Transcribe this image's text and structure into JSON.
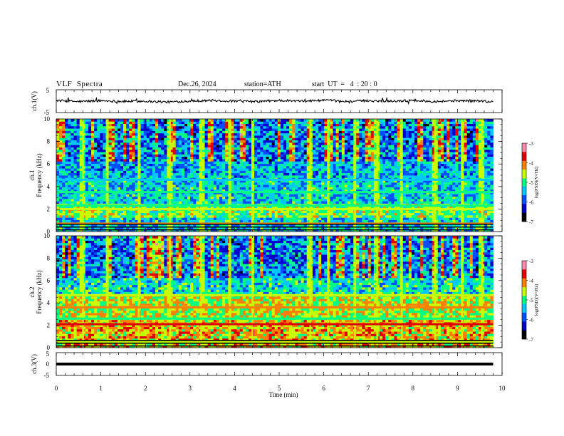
{
  "header": {
    "title": "VLF  Spectra",
    "date": "Dec.26, 2024",
    "station": "station=ATH",
    "start": "start  UT  =   4  : 20 : 0"
  },
  "colors": {
    "colormap": [
      "#000000",
      "#0000c8",
      "#0050ff",
      "#00c8ff",
      "#00ff80",
      "#c8ff00",
      "#ff8000",
      "#e00000",
      "#ff88aa",
      "#ffffff"
    ],
    "trace": "#000000",
    "frame": "#000000"
  },
  "chart_data": [
    {
      "type": "line",
      "panel": "ch1-waveform",
      "ylabel": "ch.1(V)",
      "ylim": [
        -5,
        5
      ],
      "yticks": [
        5,
        -5
      ],
      "xlim": [
        0,
        10
      ],
      "series": [
        {
          "x": [
            0,
            0.5,
            1.0,
            1.5,
            2.0,
            2.5,
            3.0,
            3.5,
            4.0,
            4.5,
            5.0,
            5.5,
            6.0,
            6.5,
            7.0,
            7.5,
            8.0,
            8.5,
            9.0,
            9.5,
            9.8
          ],
          "values": [
            0.3,
            -0.2,
            0.2,
            -0.1,
            0.0,
            -0.4,
            0.1,
            0.3,
            0.0,
            -0.2,
            0.3,
            0.0,
            0.4,
            -0.1,
            0.2,
            0.0,
            0.3,
            -0.1,
            0.2,
            0.1,
            -0.3
          ]
        }
      ]
    },
    {
      "type": "heatmap",
      "panel": "ch1-spectrogram",
      "ylabel": "ch.1\nFrequency  (kHz)",
      "ylim": [
        0,
        10
      ],
      "yticks": [
        0,
        2,
        4,
        6,
        8,
        10
      ],
      "xlim": [
        0,
        10
      ],
      "data_xlim": [
        0,
        9.8
      ],
      "colorbar": {
        "label": "log(PSD)(V²/Hz)",
        "range": [
          -7,
          -3
        ],
        "ticks": [
          -3,
          -4,
          -5,
          -6,
          -7
        ]
      },
      "horizontal_bands": [
        {
          "freq_khz": 2.0,
          "level": -4.5
        },
        {
          "freq_khz": 2.3,
          "level": -4.8
        },
        {
          "freq_khz": 3.5,
          "level": -5.0
        },
        {
          "freq_khz": 4.6,
          "level": -5.3
        },
        {
          "freq_khz": 0.7,
          "level": -4.2
        }
      ],
      "impulsive_events_min": [
        0.6,
        1.15,
        1.85,
        2.55,
        3.25,
        3.9,
        4.4,
        5.7,
        6.1,
        6.7,
        7.2,
        7.75,
        8.5,
        9.1,
        9.55
      ]
    },
    {
      "type": "heatmap",
      "panel": "ch2-spectrogram",
      "ylabel": "ch.2\nFrequency  (kHz)",
      "ylim": [
        0,
        10
      ],
      "yticks": [
        0,
        2,
        4,
        6,
        8,
        10
      ],
      "xlim": [
        0,
        10
      ],
      "data_xlim": [
        0,
        9.8
      ],
      "colorbar": {
        "label": "log(PSD)(V²/Hz)",
        "range": [
          -7,
          -3
        ],
        "ticks": [
          -3,
          -4,
          -5,
          -6,
          -7
        ]
      },
      "horizontal_bands": [
        {
          "freq_khz": 2.1,
          "level": -3.8
        },
        {
          "freq_khz": 3.6,
          "level": -4.0
        },
        {
          "freq_khz": 4.7,
          "level": -4.4
        },
        {
          "freq_khz": 2.6,
          "level": -4.8
        },
        {
          "freq_khz": 0.5,
          "level": -4.5
        }
      ],
      "impulsive_events_min": [
        0.6,
        1.15,
        1.85,
        2.55,
        3.25,
        3.9,
        4.4,
        5.7,
        6.1,
        6.7,
        7.2,
        7.75,
        8.5,
        9.1,
        9.55
      ]
    },
    {
      "type": "line",
      "panel": "ch3-waveform",
      "ylabel": "ch.3(V)",
      "ylim": [
        -5,
        5
      ],
      "yticks": [
        5,
        0,
        -5
      ],
      "xlim": [
        0,
        10
      ],
      "xlabel": "Time  (min)",
      "xticks": [
        0,
        1,
        2,
        3,
        4,
        5,
        6,
        7,
        8,
        9,
        10
      ],
      "series": [
        {
          "x": [
            0,
            9.8
          ],
          "values": [
            0,
            0
          ]
        }
      ]
    }
  ]
}
